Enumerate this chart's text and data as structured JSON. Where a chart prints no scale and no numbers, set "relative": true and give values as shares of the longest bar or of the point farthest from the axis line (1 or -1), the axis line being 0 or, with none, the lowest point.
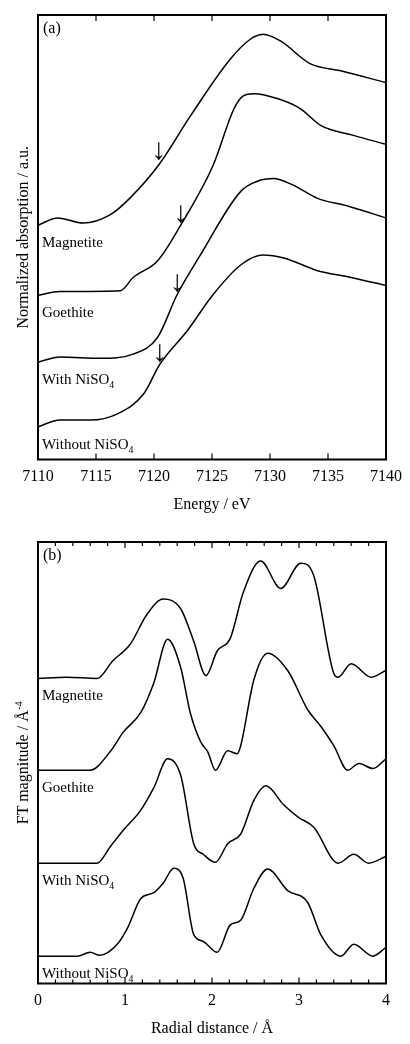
{
  "chart_data": [
    {
      "type": "line",
      "title": "(a)",
      "xlabel": "Energy / eV",
      "ylabel": "Normalized absorption / a.u.",
      "relative": true,
      "xlim": [
        7110,
        7140
      ],
      "xticks": [
        7110,
        7115,
        7120,
        7125,
        7130,
        7135,
        7140
      ],
      "grid": false,
      "marker": "none",
      "line_style": "solid",
      "annotations": [
        {
          "text": "↓",
          "x": 7120.4,
          "y": 0.7
        },
        {
          "text": "↓",
          "x": 7122.3,
          "y": 0.551
        },
        {
          "text": "↓",
          "x": 7122.0,
          "y": 0.388
        },
        {
          "text": "↓",
          "x": 7120.5,
          "y": 0.224
        }
      ],
      "series": [
        {
          "name": "Magnetite",
          "color": "#000000",
          "x": [
            7110,
            7111.7,
            7113.9,
            7116.2,
            7117.9,
            7120.5,
            7123.1,
            7126.6,
            7128.3,
            7129.4,
            7130.9,
            7133.5,
            7136.1,
            7140
          ],
          "values": [
            0.551,
            0.568,
            0.556,
            0.575,
            0.614,
            0.696,
            0.806,
            0.942,
            0.988,
            1.0,
            0.984,
            0.93,
            0.914,
            0.886
          ]
        },
        {
          "name": "Goethite",
          "color": "#000000",
          "x": [
            7110,
            7111.9,
            7117.1,
            7118.2,
            7120.3,
            7122.3,
            7125.1,
            7126.9,
            7127.7,
            7128.6,
            7130.7,
            7132.6,
            7134.4,
            7137.2,
            7140
          ],
          "values": [
            0.386,
            0.395,
            0.397,
            0.428,
            0.467,
            0.551,
            0.692,
            0.825,
            0.855,
            0.86,
            0.848,
            0.825,
            0.785,
            0.762,
            0.741
          ]
        },
        {
          "name": "With NiSO$_{4}$",
          "color": "#000000",
          "x": [
            7110,
            7111.9,
            7115.4,
            7118.2,
            7120.3,
            7122.0,
            7124.0,
            7127.5,
            7129.2,
            7130.3,
            7132.0,
            7134.1,
            7136.7,
            7140
          ],
          "values": [
            0.229,
            0.241,
            0.238,
            0.248,
            0.287,
            0.388,
            0.481,
            0.631,
            0.657,
            0.661,
            0.645,
            0.614,
            0.596,
            0.568
          ]
        },
        {
          "name": "Without NiSO$_{4}$",
          "color": "#000000",
          "x": [
            7110,
            7111.9,
            7114.5,
            7116.8,
            7119.1,
            7120.5,
            7122.9,
            7125.1,
            7127.5,
            7129.4,
            7131.2,
            7134.1,
            7137.0,
            7140
          ],
          "values": [
            0.077,
            0.093,
            0.093,
            0.107,
            0.154,
            0.224,
            0.304,
            0.388,
            0.458,
            0.481,
            0.474,
            0.444,
            0.428,
            0.409
          ]
        }
      ]
    },
    {
      "type": "line",
      "title": "(b)",
      "xlabel": "Radial distance / Å",
      "ylabel": "FT magnitude / Å$^{-4}$",
      "relative": true,
      "xlim": [
        0,
        4
      ],
      "xticks": [
        0,
        {
          "value": 0.2,
          "label": null
        },
        {
          "value": 0.4,
          "label": null
        },
        {
          "value": 0.6,
          "label": null
        },
        {
          "value": 0.8,
          "label": null
        },
        1,
        {
          "value": 1.2,
          "label": null
        },
        {
          "value": 1.4,
          "label": null
        },
        {
          "value": 1.6,
          "label": null
        },
        {
          "value": 1.8,
          "label": null
        },
        2,
        {
          "value": 2.2,
          "label": null
        },
        {
          "value": 2.4,
          "label": null
        },
        {
          "value": 2.6,
          "label": null
        },
        {
          "value": 2.8,
          "label": null
        },
        3,
        {
          "value": 3.2,
          "label": null
        },
        {
          "value": 3.4,
          "label": null
        },
        {
          "value": 3.6,
          "label": null
        },
        {
          "value": 3.8,
          "label": null
        },
        4
      ],
      "grid": false,
      "marker": "none",
      "line_style": "solid",
      "series": [
        {
          "name": "Magnetite",
          "color": "#000000",
          "x": [
            0,
            0.33,
            0.68,
            0.86,
            1.06,
            1.25,
            1.44,
            1.64,
            1.79,
            1.93,
            2.06,
            2.21,
            2.36,
            2.56,
            2.79,
            3.02,
            3.17,
            3.4,
            3.45,
            3.6,
            3.83,
            4.0
          ],
          "values": [
            0.722,
            0.725,
            0.722,
            0.764,
            0.803,
            0.873,
            0.91,
            0.887,
            0.81,
            0.729,
            0.787,
            0.817,
            0.926,
            1.0,
            0.935,
            0.995,
            0.965,
            0.734,
            0.725,
            0.757,
            0.725,
            0.741
          ]
        },
        {
          "name": "Goethite",
          "color": "#000000",
          "x": [
            0,
            0.6,
            0.83,
            0.98,
            1.18,
            1.33,
            1.49,
            1.64,
            1.75,
            1.87,
            1.95,
            2.04,
            2.18,
            2.29,
            2.33,
            2.48,
            2.64,
            2.87,
            3.1,
            3.25,
            3.4,
            3.56,
            3.69,
            3.85,
            4.0
          ],
          "values": [
            0.505,
            0.505,
            0.549,
            0.595,
            0.641,
            0.711,
            0.815,
            0.748,
            0.641,
            0.572,
            0.549,
            0.505,
            0.551,
            0.544,
            0.563,
            0.718,
            0.782,
            0.741,
            0.648,
            0.609,
            0.563,
            0.505,
            0.521,
            0.509,
            0.532
          ]
        },
        {
          "name": "With NiSO$_{4}$",
          "color": "#000000",
          "x": [
            0,
            0.68,
            0.83,
            0.98,
            1.18,
            1.33,
            1.49,
            1.64,
            1.79,
            1.9,
            2.04,
            2.18,
            2.33,
            2.48,
            2.62,
            2.82,
            2.99,
            3.17,
            3.45,
            3.63,
            3.8,
            4.0
          ],
          "values": [
            0.285,
            0.285,
            0.324,
            0.363,
            0.41,
            0.463,
            0.532,
            0.493,
            0.331,
            0.306,
            0.287,
            0.331,
            0.354,
            0.433,
            0.468,
            0.424,
            0.394,
            0.37,
            0.285,
            0.306,
            0.285,
            0.301
          ]
        },
        {
          "name": "Without NiSO$_{4}$",
          "color": "#000000",
          "x": [
            0,
            0.45,
            0.6,
            0.71,
            0.91,
            1.03,
            1.18,
            1.33,
            1.44,
            1.56,
            1.67,
            1.79,
            1.9,
            2.06,
            2.21,
            2.33,
            2.48,
            2.64,
            2.87,
            3.1,
            3.25,
            3.48,
            3.63,
            3.85,
            4.0
          ],
          "values": [
            0.065,
            0.065,
            0.074,
            0.067,
            0.093,
            0.132,
            0.201,
            0.215,
            0.238,
            0.273,
            0.248,
            0.116,
            0.1,
            0.074,
            0.139,
            0.15,
            0.225,
            0.271,
            0.22,
            0.192,
            0.116,
            0.065,
            0.093,
            0.065,
            0.086
          ]
        }
      ]
    }
  ]
}
